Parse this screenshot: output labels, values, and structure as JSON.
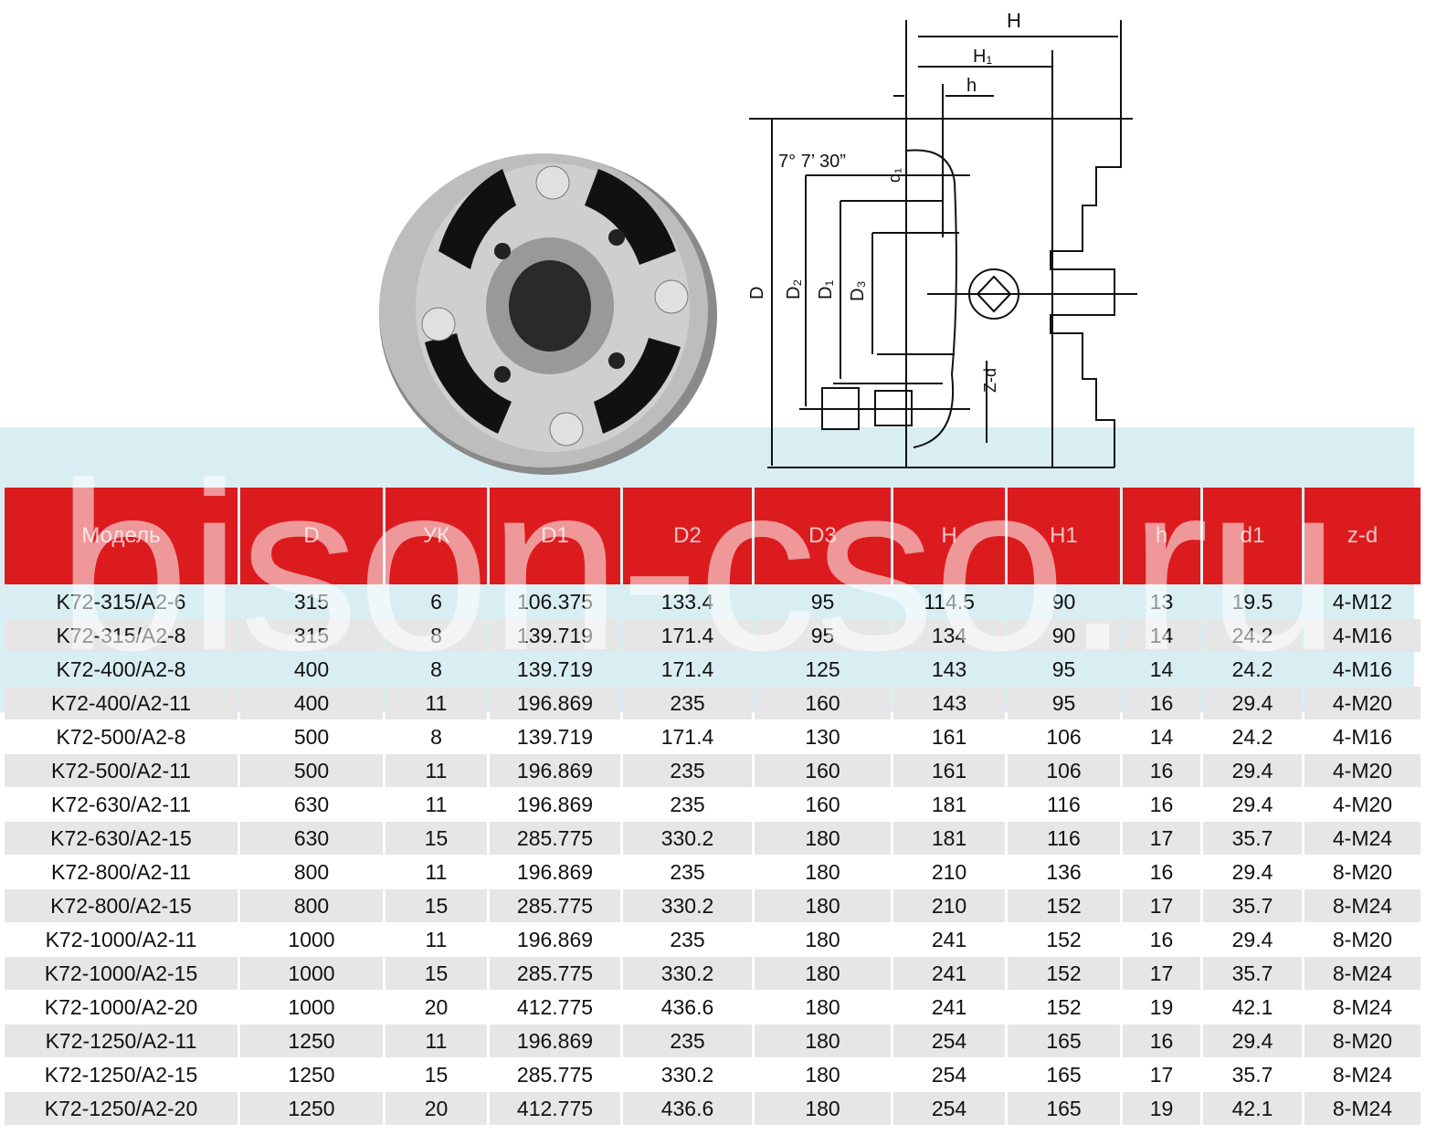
{
  "watermark": "bison-cso.ru",
  "drawing_labels": {
    "H": "H",
    "H1": "H₁",
    "h": "h",
    "angle": "7° 7’ 30”",
    "d1": "d₁",
    "D": "D",
    "D2": "D₂",
    "D1": "D₁",
    "D3": "D₃",
    "zd": "Z-d"
  },
  "table": {
    "headers": [
      "Модель",
      "D",
      "УК",
      "D1",
      "D2",
      "D3",
      "H",
      "H1",
      "h",
      "d1",
      "z-d"
    ],
    "rows": [
      [
        "K72-315/A2-6",
        "315",
        "6",
        "106.375",
        "133.4",
        "95",
        "114.5",
        "90",
        "13",
        "19.5",
        "4-M12"
      ],
      [
        "K72-315/A2-8",
        "315",
        "8",
        "139.719",
        "171.4",
        "95",
        "134",
        "90",
        "14",
        "24.2",
        "4-M16"
      ],
      [
        "K72-400/A2-8",
        "400",
        "8",
        "139.719",
        "171.4",
        "125",
        "143",
        "95",
        "14",
        "24.2",
        "4-M16"
      ],
      [
        "K72-400/A2-11",
        "400",
        "11",
        "196.869",
        "235",
        "160",
        "143",
        "95",
        "16",
        "29.4",
        "4-M20"
      ],
      [
        "K72-500/A2-8",
        "500",
        "8",
        "139.719",
        "171.4",
        "130",
        "161",
        "106",
        "14",
        "24.2",
        "4-M16"
      ],
      [
        "K72-500/A2-11",
        "500",
        "11",
        "196.869",
        "235",
        "160",
        "161",
        "106",
        "16",
        "29.4",
        "4-M20"
      ],
      [
        "K72-630/A2-11",
        "630",
        "11",
        "196.869",
        "235",
        "160",
        "181",
        "116",
        "16",
        "29.4",
        "4-M20"
      ],
      [
        "K72-630/A2-15",
        "630",
        "15",
        "285.775",
        "330.2",
        "180",
        "181",
        "116",
        "17",
        "35.7",
        "4-M24"
      ],
      [
        "K72-800/A2-11",
        "800",
        "11",
        "196.869",
        "235",
        "180",
        "210",
        "136",
        "16",
        "29.4",
        "8-M20"
      ],
      [
        "K72-800/A2-15",
        "800",
        "15",
        "285.775",
        "330.2",
        "180",
        "210",
        "152",
        "17",
        "35.7",
        "8-M24"
      ],
      [
        "K72-1000/A2-11",
        "1000",
        "11",
        "196.869",
        "235",
        "180",
        "241",
        "152",
        "16",
        "29.4",
        "8-M20"
      ],
      [
        "K72-1000/A2-15",
        "1000",
        "15",
        "285.775",
        "330.2",
        "180",
        "241",
        "152",
        "17",
        "35.7",
        "8-M24"
      ],
      [
        "K72-1000/A2-20",
        "1000",
        "20",
        "412.775",
        "436.6",
        "180",
        "241",
        "152",
        "19",
        "42.1",
        "8-M24"
      ],
      [
        "K72-1250/A2-11",
        "1250",
        "11",
        "196.869",
        "235",
        "180",
        "254",
        "165",
        "16",
        "29.4",
        "8-M20"
      ],
      [
        "K72-1250/A2-15",
        "1250",
        "15",
        "285.775",
        "330.2",
        "180",
        "254",
        "165",
        "17",
        "35.7",
        "8-M24"
      ],
      [
        "K72-1250/A2-20",
        "1250",
        "20",
        "412.775",
        "436.6",
        "180",
        "254",
        "165",
        "19",
        "42.1",
        "8-M24"
      ]
    ]
  }
}
